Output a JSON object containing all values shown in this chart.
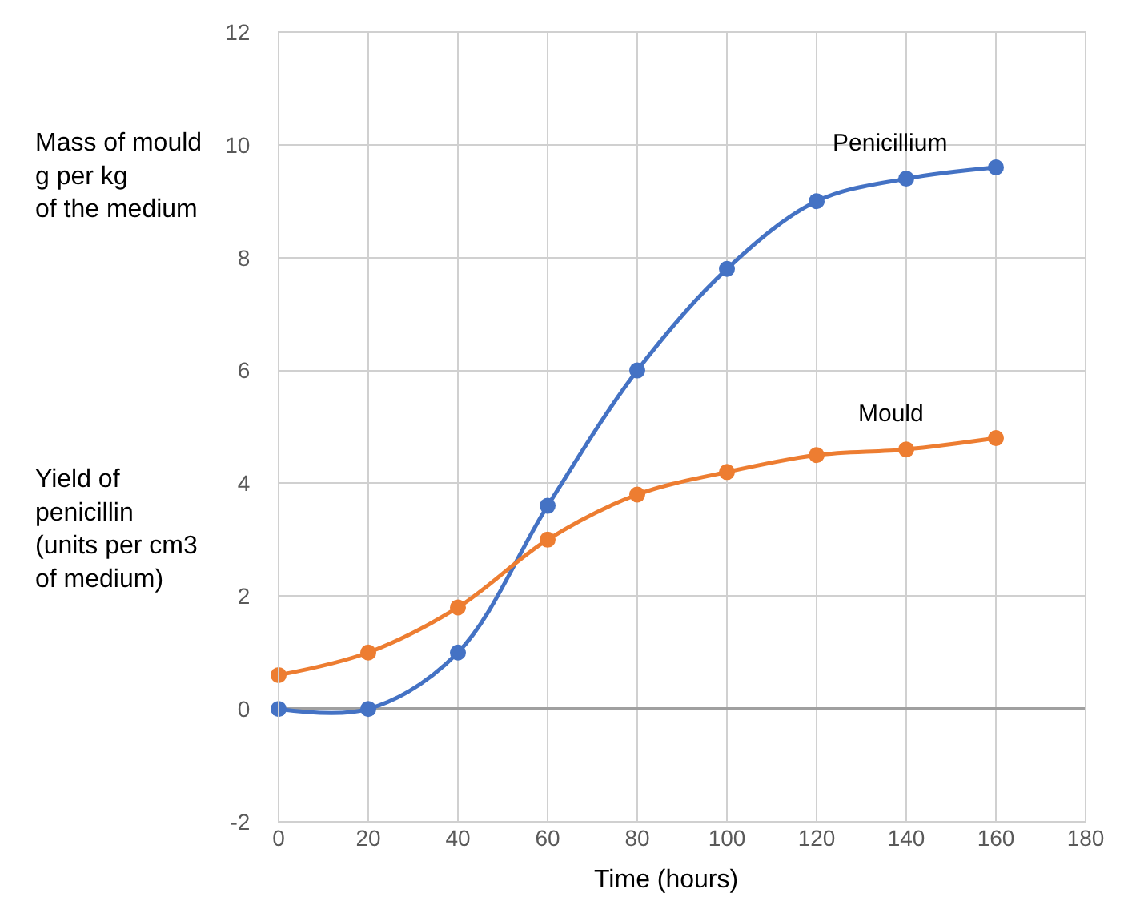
{
  "chart_data": {
    "type": "line",
    "ylabel": "Mass of mould\ng per kg\nof the medium",
    "xlabel": "Time (hours)",
    "annotations": [
      "Yield of\npenicillin\n(units per cm3\nof medium)"
    ],
    "x": [
      0,
      20,
      40,
      60,
      80,
      100,
      120,
      140,
      160
    ],
    "series": [
      {
        "name": "Penicillium",
        "color": "#4472c4",
        "values": [
          0,
          0,
          1,
          3.6,
          6,
          7.8,
          9,
          9.4,
          9.6
        ]
      },
      {
        "name": "Mould",
        "color": "#ed7d31",
        "values": [
          0.6,
          1,
          1.8,
          3,
          3.8,
          4.2,
          4.5,
          4.6,
          4.8
        ]
      }
    ],
    "xlim": [
      0,
      180
    ],
    "xticks": [
      0,
      20,
      40,
      60,
      80,
      100,
      120,
      140,
      160,
      180
    ],
    "ylim": [
      -2,
      12
    ],
    "yticks": [
      -2,
      0,
      2,
      4,
      6,
      8,
      10,
      12
    ],
    "grid": true,
    "marker": "circle",
    "line_style": "solid",
    "legend": false
  }
}
